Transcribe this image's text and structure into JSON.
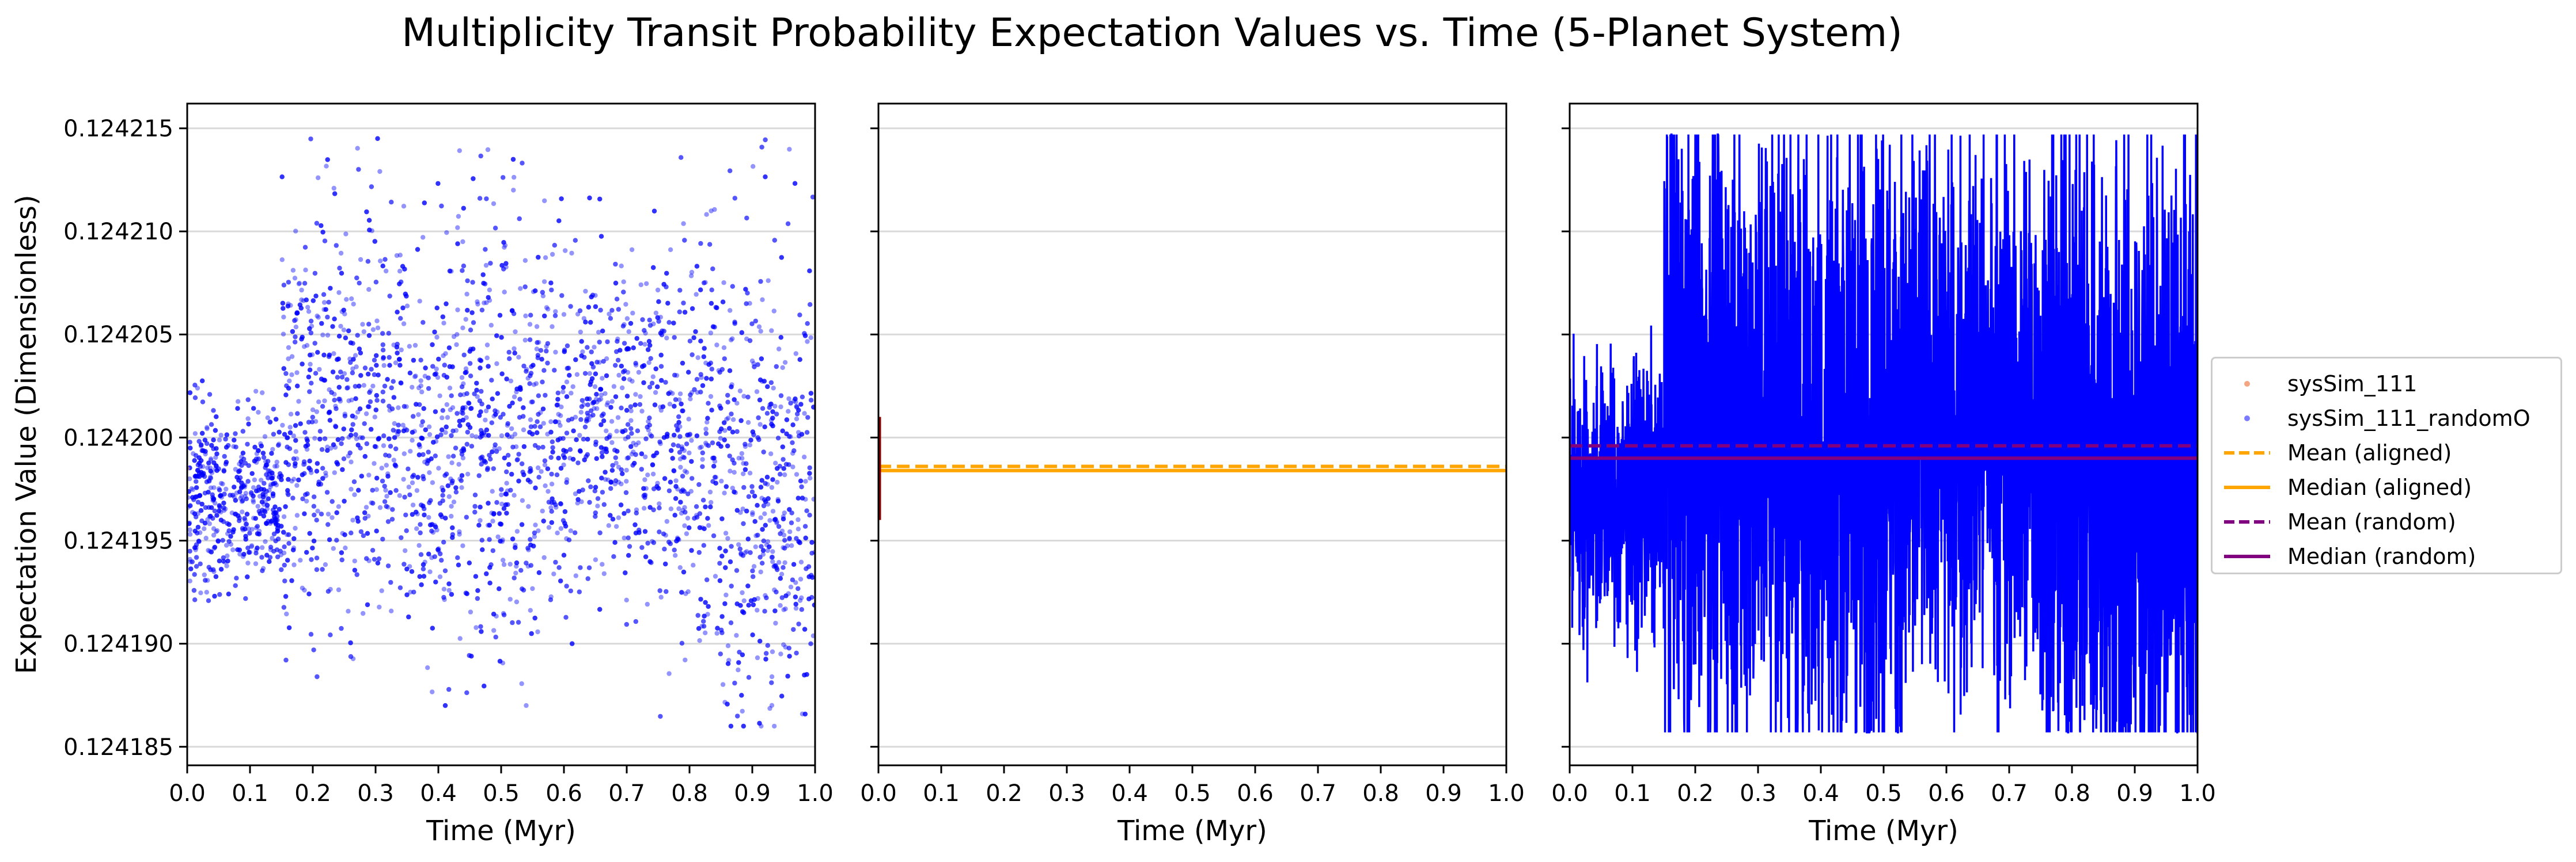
{
  "figure_title": "Multiplicity Transit Probability Expectation Values vs. Time (5-Planet System)",
  "colors": {
    "aligned_points": "#f4a582",
    "random_points": "#0000ff",
    "aligned_lines": "#ffa500",
    "random_lines": "#800080",
    "aligned_trace": "#8b0000",
    "random_trace": "#0000ff"
  },
  "legend": {
    "placement": "center-right",
    "items": [
      {
        "label": "sysSim_111",
        "marker": "dot",
        "color": "#f4a582"
      },
      {
        "label": "sysSim_111_randomO",
        "marker": "dot",
        "color": "#7b7bff"
      },
      {
        "label": "Mean (aligned)",
        "marker": "dashed",
        "color": "#ffa500"
      },
      {
        "label": "Median (aligned)",
        "marker": "solid",
        "color": "#ffa500"
      },
      {
        "label": "Mean (random)",
        "marker": "dashed",
        "color": "#800080"
      },
      {
        "label": "Median (random)",
        "marker": "solid",
        "color": "#800080"
      }
    ]
  },
  "chart_data": [
    {
      "type": "scatter",
      "panel": "left",
      "xlabel": "Time (Myr)",
      "ylabel": "Expectation Value (Dimensionless)",
      "xlim": [
        0.0,
        1.0
      ],
      "ylim": [
        0.1241841,
        0.1242162
      ],
      "xticks": [
        "0.0",
        "0.1",
        "0.2",
        "0.3",
        "0.4",
        "0.5",
        "0.6",
        "0.7",
        "0.8",
        "0.9",
        "1.0"
      ],
      "yticks": [
        "0.124185",
        "0.124190",
        "0.124195",
        "0.124200",
        "0.124205",
        "0.124210",
        "0.124215"
      ],
      "grid": "y",
      "series": [
        {
          "name": "sysSim_111_randomO",
          "marker": "dot",
          "color": "#0000ff",
          "x_range": [
            0.0,
            1.0
          ],
          "segments": [
            {
              "x": [
                0.0,
                0.15
              ],
              "center": 0.124197,
              "low": 0.124192,
              "high": 0.124203
            },
            {
              "x": [
                0.15,
                0.35
              ],
              "center": 0.124201,
              "low": 0.124188,
              "high": 0.1242147
            },
            {
              "x": [
                0.35,
                0.55
              ],
              "center": 0.1242,
              "low": 0.124187,
              "high": 0.1242147
            },
            {
              "x": [
                0.55,
                0.75
              ],
              "center": 0.124201,
              "low": 0.12419,
              "high": 0.124213
            },
            {
              "x": [
                0.75,
                0.85
              ],
              "center": 0.124199,
              "low": 0.124186,
              "high": 0.1242147
            },
            {
              "x": [
                0.85,
                1.0
              ],
              "center": 0.124197,
              "low": 0.124186,
              "high": 0.1242147
            }
          ]
        },
        {
          "name": "sysSim_111",
          "marker": "dot",
          "color": "#f4a582",
          "note": "",
          "x": [
            0.0
          ],
          "y": [
            0.1241985
          ]
        }
      ]
    },
    {
      "type": "line",
      "panel": "middle",
      "xlabel": "Time (Myr)",
      "xlim": [
        0.0,
        1.0
      ],
      "ylim": [
        0.1241841,
        0.1242162
      ],
      "xticks": [
        "0.0",
        "0.1",
        "0.2",
        "0.3",
        "0.4",
        "0.5",
        "0.6",
        "0.7",
        "0.8",
        "0.9",
        "1.0"
      ],
      "grid": "y",
      "series": [
        {
          "name": "Mean (aligned)",
          "style": "dashed",
          "color": "#ffa500",
          "y": 0.1241986
        },
        {
          "name": "Median (aligned)",
          "style": "solid",
          "color": "#ffa500",
          "y": 0.1241984
        },
        {
          "name": "sysSim_111 trace",
          "style": "solid",
          "color": "#8b0000",
          "x": [
            0.0,
            0.0
          ],
          "y": [
            0.124196,
            0.124201
          ]
        }
      ]
    },
    {
      "type": "line",
      "panel": "right",
      "xlabel": "Time (Myr)",
      "xlim": [
        0.0,
        1.0
      ],
      "ylim": [
        0.1241841,
        0.1242162
      ],
      "xticks": [
        "0.0",
        "0.1",
        "0.2",
        "0.3",
        "0.4",
        "0.5",
        "0.6",
        "0.7",
        "0.8",
        "0.9",
        "1.0"
      ],
      "grid": "y",
      "series": [
        {
          "name": "sysSim_111_randomO trace",
          "style": "solid",
          "color": "#0000ff",
          "x_range": [
            0.0,
            1.0
          ],
          "low": 0.1241857,
          "high": 0.1242147
        },
        {
          "name": "Mean (random)",
          "style": "dashed",
          "color": "#800080",
          "y": 0.1241996
        },
        {
          "name": "Median (random)",
          "style": "solid",
          "color": "#800080",
          "y": 0.124199
        }
      ]
    }
  ]
}
